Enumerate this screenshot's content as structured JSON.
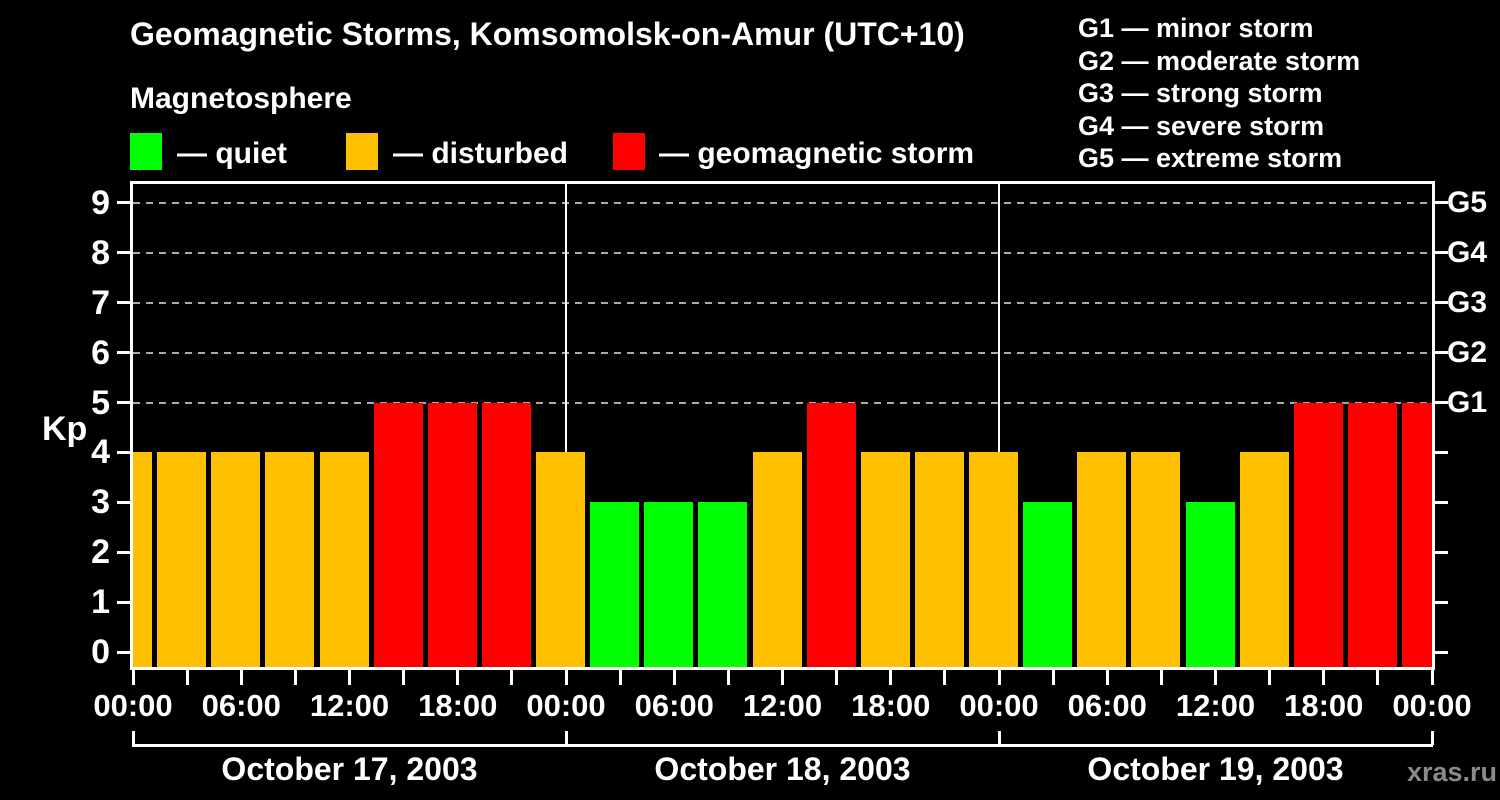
{
  "title": "Geomagnetic Storms, Komsomolsk-on-Amur (UTC+10)",
  "subtitle": "Magnetosphere",
  "kp_legend": [
    {
      "name": "quiet",
      "label": "— quiet",
      "color": "#00ff00"
    },
    {
      "name": "disturbed",
      "label": "— disturbed",
      "color": "#ffc000"
    },
    {
      "name": "storm",
      "label": "— geomagnetic storm",
      "color": "#ff0000"
    }
  ],
  "g_scale_legend": [
    "G1 — minor storm",
    "G2 — moderate storm",
    "G3 — strong storm",
    "G4 — severe storm",
    "G5 — extreme storm"
  ],
  "watermark": "xras.ru",
  "colors": {
    "background": "#000000",
    "frame": "#ffffff",
    "grid": "#aaaaaa",
    "quiet": "#00ff00",
    "disturbed": "#ffc000",
    "storm": "#ff0000",
    "watermark": "#8a8a8a"
  },
  "chart_data": {
    "type": "bar",
    "title": "Geomagnetic Storms, Komsomolsk-on-Amur (UTC+10)",
    "xlabel": "",
    "ylabel": "Kp",
    "ylim": [
      0,
      9.4
    ],
    "yticks": [
      0,
      1,
      2,
      3,
      4,
      5,
      6,
      7,
      8,
      9
    ],
    "gridlines_at_kp": [
      5,
      6,
      7,
      8,
      9
    ],
    "grid_style": "dashed horizontal lines at G-storm levels only",
    "legend_position": "top",
    "bar_interval_hours": 3,
    "right_axis": [
      {
        "kp": 5,
        "label": "G1"
      },
      {
        "kp": 6,
        "label": "G2"
      },
      {
        "kp": 7,
        "label": "G3"
      },
      {
        "kp": 8,
        "label": "G4"
      },
      {
        "kp": 9,
        "label": "G5"
      }
    ],
    "x_tick_labels_6h": [
      "00:00",
      "06:00",
      "12:00",
      "18:00",
      "00:00",
      "06:00",
      "12:00",
      "18:00",
      "00:00",
      "06:00",
      "12:00",
      "18:00",
      "00:00"
    ],
    "days": [
      {
        "date": "October 17, 2003",
        "kp": [
          4,
          4,
          4,
          4,
          4,
          5,
          5,
          5
        ]
      },
      {
        "date": "October 18, 2003",
        "kp": [
          4,
          3,
          3,
          3,
          4,
          5,
          4,
          4
        ]
      },
      {
        "date": "October 19, 2003",
        "kp": [
          4,
          3,
          4,
          4,
          3,
          4,
          5,
          5
        ]
      }
    ],
    "trailing_partial_bar_kp": 5,
    "color_rule": {
      "quiet_max_kp": 3,
      "disturbed_kp": 4,
      "storm_min_kp": 5
    }
  }
}
